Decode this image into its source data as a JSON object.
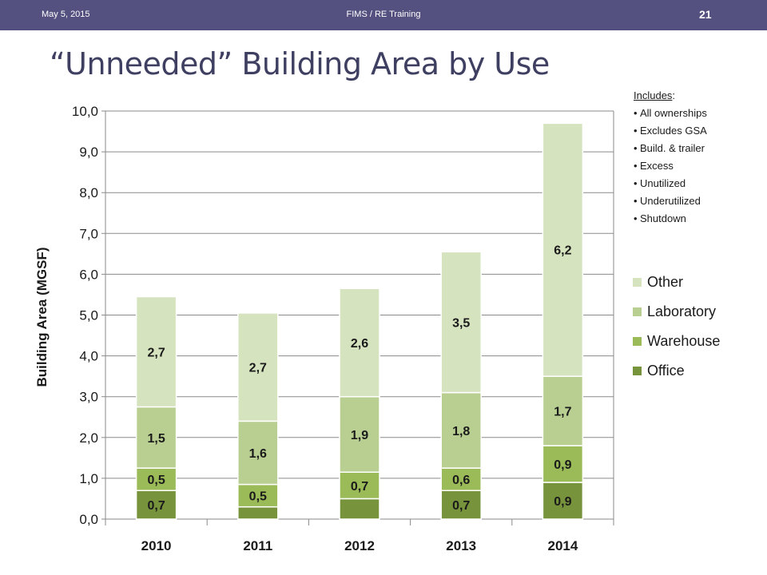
{
  "header": {
    "date": "May 5, 2015",
    "footer": "FIMS / RE Training",
    "page_number": "21"
  },
  "slide": {
    "title": "“Unneeded” Building Area by Use"
  },
  "notes": {
    "heading": "Includes",
    "heading_suffix": ":",
    "items": [
      "All ownerships",
      "Excludes GSA",
      "Build. & trailer",
      "Excess",
      "Unutilized",
      "Underutilized",
      "Shutdown"
    ]
  },
  "chart_data": {
    "type": "bar",
    "stacked": true,
    "categories": [
      "2010",
      "2011",
      "2012",
      "2013",
      "2014"
    ],
    "ylabel": "Building Area (MGSF)",
    "xlabel": "",
    "ylim": [
      0,
      10
    ],
    "yticks": [
      "0,0",
      "1,0",
      "2,0",
      "3,0",
      "4,0",
      "5,0",
      "6,0",
      "7,0",
      "8,0",
      "9,0",
      "10,0"
    ],
    "grid": true,
    "legend_position": "right",
    "series": [
      {
        "name": "Office",
        "color": "#77933c",
        "values": [
          0.7,
          0.3,
          0.5,
          0.7,
          0.9
        ],
        "labels": [
          "0,7",
          "",
          "",
          "0,7",
          "0,9"
        ]
      },
      {
        "name": "Warehouse",
        "color": "#9bbb59",
        "values": [
          0.55,
          0.55,
          0.65,
          0.55,
          0.9
        ],
        "labels": [
          "0,5",
          "0,5",
          "0,7",
          "0,6",
          "0,9"
        ]
      },
      {
        "name": "Laboratory",
        "color": "#b9cf92",
        "values": [
          1.5,
          1.55,
          1.85,
          1.85,
          1.7
        ],
        "labels": [
          "1,5",
          "1,6",
          "1,9",
          "1,8",
          "1,7"
        ]
      },
      {
        "name": "Other",
        "color": "#d6e3bf",
        "values": [
          2.7,
          2.65,
          2.65,
          3.45,
          6.2
        ],
        "labels": [
          "2,7",
          "2,7",
          "2,6",
          "3,5",
          "6,2"
        ]
      }
    ]
  }
}
